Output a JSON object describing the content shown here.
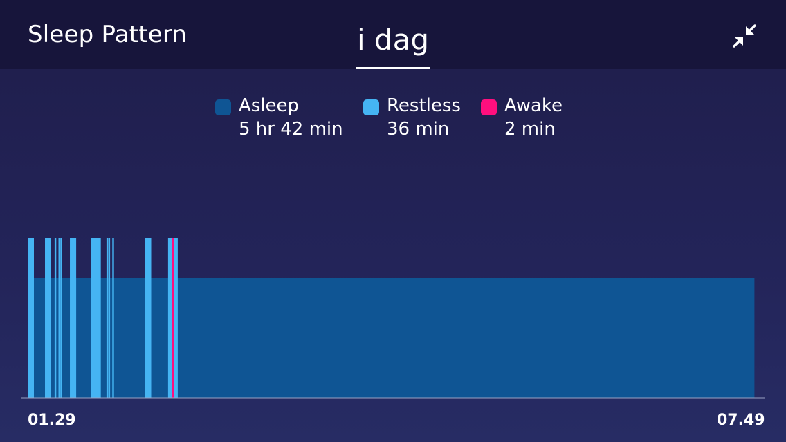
{
  "header": {
    "title": "Sleep Pattern",
    "tab_label": "i dag",
    "collapse_icon": "collapse-arrows-icon"
  },
  "legend": [
    {
      "key": "asleep",
      "name": "Asleep",
      "value": "5 hr 42 min",
      "color": "#0f5594"
    },
    {
      "key": "restless",
      "name": "Restless",
      "value": "36 min",
      "color": "#45b4f3"
    },
    {
      "key": "awake",
      "name": "Awake",
      "value": "2 min",
      "color": "#ff0f7e"
    }
  ],
  "chart_data": {
    "type": "bar",
    "title": "",
    "x_start": "01.29",
    "x_end": "07.49",
    "x_start_min": 89,
    "x_end_min": 469,
    "levels": [
      "asleep",
      "restless",
      "awake"
    ],
    "colors": {
      "asleep": "#0f5594",
      "restless": "#45b4f3",
      "awake": "#ff0f7e"
    },
    "segments": [
      {
        "state": "asleep",
        "start": "01.29",
        "end": "07.47"
      },
      {
        "state": "restless",
        "start": "01.29",
        "end": "01.30"
      },
      {
        "state": "restless",
        "start": "01.38",
        "end": "01.38"
      },
      {
        "state": "restless",
        "start": "01.38",
        "end": "01.39"
      },
      {
        "state": "restless",
        "start": "01.43",
        "end": "01.43"
      },
      {
        "state": "restless",
        "start": "01.45",
        "end": "01.45"
      },
      {
        "state": "restless",
        "start": "01.46",
        "end": "01.46"
      },
      {
        "state": "restless",
        "start": "01.51",
        "end": "01.51"
      },
      {
        "state": "restless",
        "start": "01.51",
        "end": "01.52"
      },
      {
        "state": "restless",
        "start": "02.02",
        "end": "02.04"
      },
      {
        "state": "restless",
        "start": "02.10",
        "end": "02.10"
      },
      {
        "state": "restless",
        "start": "02.11",
        "end": "02.11"
      },
      {
        "state": "restless",
        "start": "02.13",
        "end": "02.13"
      },
      {
        "state": "restless",
        "start": "02.30",
        "end": "02.31"
      },
      {
        "state": "restless",
        "start": "02.42",
        "end": "02.44"
      },
      {
        "state": "awake",
        "start": "02.44",
        "end": "02.45"
      }
    ]
  },
  "axis": {
    "start_label": "01.29",
    "end_label": "07.49"
  }
}
